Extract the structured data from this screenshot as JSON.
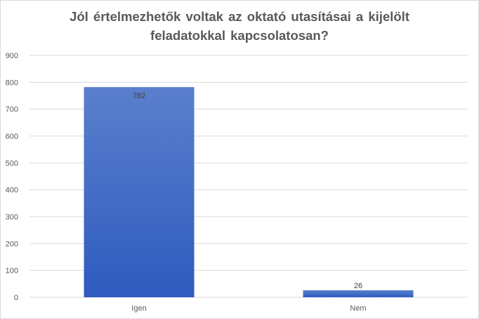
{
  "chart_data": {
    "type": "bar",
    "title_lines": [
      "Jól értelmezhetők voltak az oktató utasításai  a kijelölt",
      "feladatokkal kapcsolatosan?"
    ],
    "categories": [
      "Igen",
      "Nem"
    ],
    "values": [
      782,
      26
    ],
    "data_labels": [
      "782",
      "26"
    ],
    "y_ticks": [
      "0",
      "100",
      "200",
      "300",
      "400",
      "500",
      "600",
      "700",
      "800",
      "900"
    ],
    "ylim": [
      0,
      900
    ],
    "grid": true,
    "legend": "none",
    "bar_color_top": "#5a7fcc",
    "bar_color_bottom": "#2f5bbf"
  }
}
